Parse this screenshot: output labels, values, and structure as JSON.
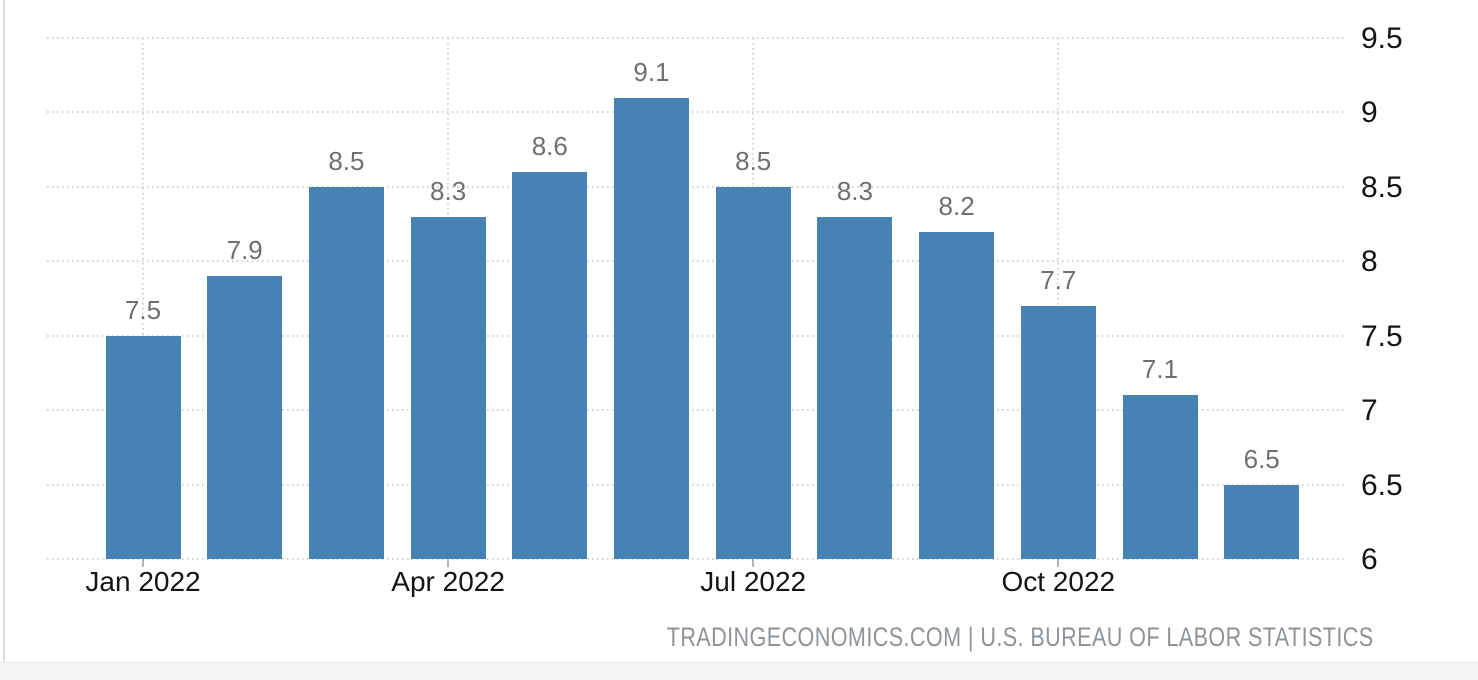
{
  "chart_data": {
    "type": "bar",
    "title": "",
    "values": [
      7.5,
      7.9,
      8.5,
      8.3,
      8.6,
      9.1,
      8.5,
      8.3,
      8.2,
      7.7,
      7.1,
      6.5
    ],
    "bar_value_labels": [
      "7.5",
      "7.9",
      "8.5",
      "8.3",
      "8.6",
      "9.1",
      "8.5",
      "8.3",
      "8.2",
      "7.7",
      "7.1",
      "6.5"
    ],
    "x_tick_labels": [
      "Jan 2022",
      "Apr 2022",
      "Jul 2022",
      "Oct 2022"
    ],
    "x_tick_bar_indices": [
      0,
      3,
      6,
      9
    ],
    "y_ticks": [
      9.5,
      9,
      8.5,
      8,
      7.5,
      7,
      6.5,
      6
    ],
    "y_tick_labels": [
      "9.5",
      "9",
      "8.5",
      "8",
      "7.5",
      "7",
      "6.5",
      "6"
    ],
    "ylim": [
      6,
      9.5
    ],
    "grid": true,
    "gridline_style": "dotted",
    "legend": "none",
    "y_axis_position": "right",
    "bar_color": "#4682b4"
  },
  "footer": {
    "attribution": "TRADINGECONOMICS.COM | U.S. BUREAU OF LABOR STATISTICS"
  },
  "colors": {
    "bar": "#4682b4",
    "grid": "#d2d2d2",
    "axis_label": "#141414",
    "bar_label": "#6f6f6f",
    "attribution": "#8e9398",
    "background": "#ffffff",
    "footer_band": "#f3f4f4"
  }
}
